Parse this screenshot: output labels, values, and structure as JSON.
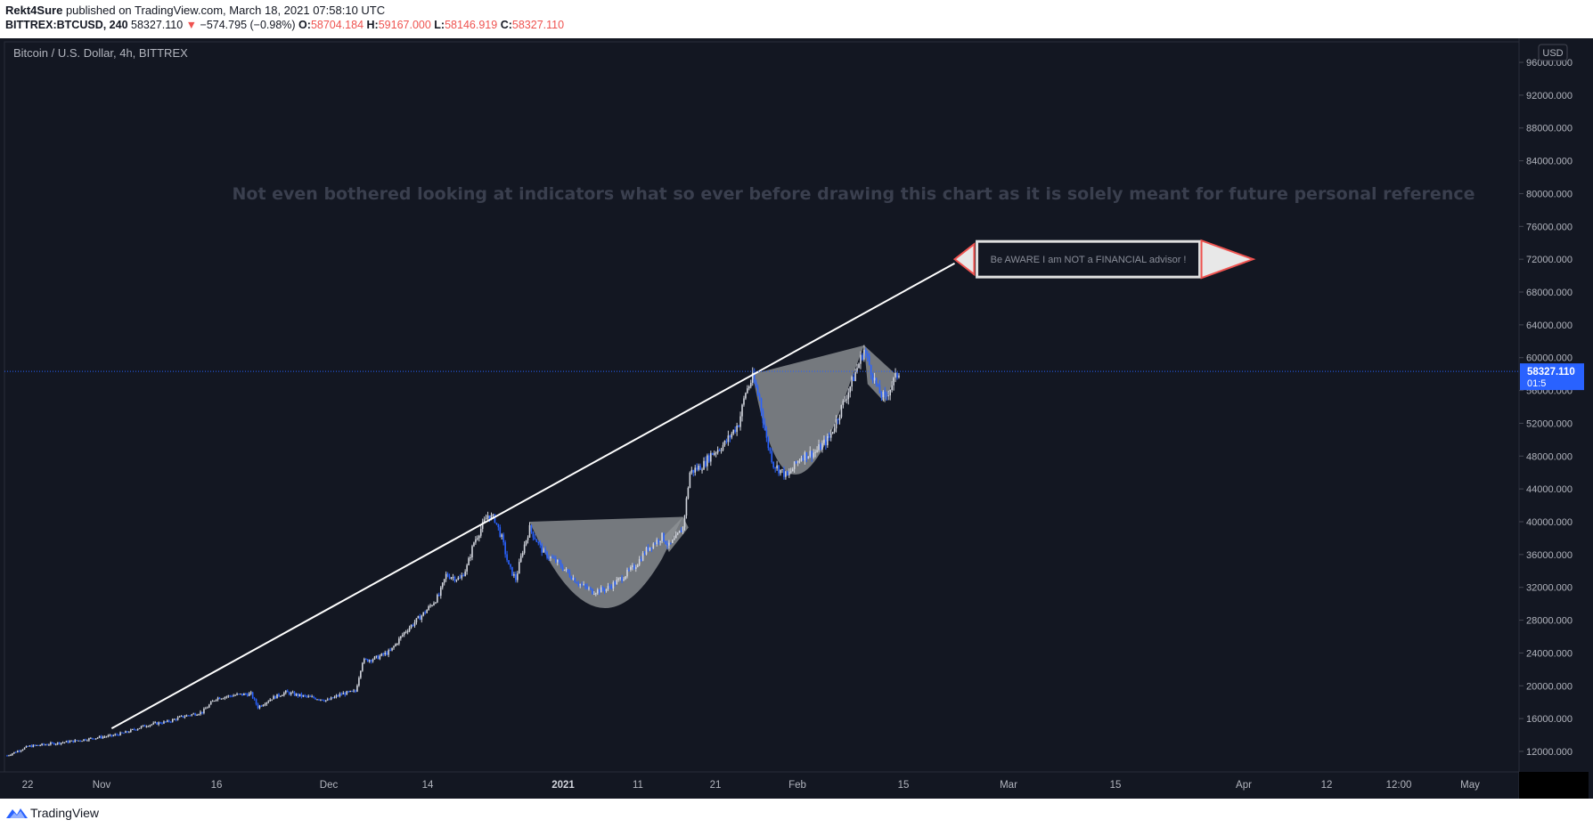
{
  "header": {
    "author": "Rekt4Sure",
    "published_text": "published on TradingView.com, March 18, 2021 07:58:10 UTC",
    "symbol_interval": "BITTREX:BTCUSD, 240",
    "last_price": "58327.110",
    "change": "−574.795 (−0.98%)",
    "open_label": "O:",
    "open_value": "58704.184",
    "high_label": "H:",
    "high_value": "59167.000",
    "low_label": "L:",
    "low_value": "58146.919",
    "close_label": "C:",
    "close_value": "58327.110"
  },
  "chart_data": {
    "type": "candlestick",
    "title": "Bitcoin / U.S. Dollar, 4h, BITTREX",
    "currency": "USD",
    "y_ticks": [
      "12000.000",
      "16000.000",
      "20000.000",
      "24000.000",
      "28000.000",
      "32000.000",
      "36000.000",
      "40000.000",
      "44000.000",
      "48000.000",
      "52000.000",
      "56000.000",
      "60000.000",
      "64000.000",
      "68000.000",
      "72000.000",
      "76000.000",
      "80000.000",
      "84000.000",
      "88000.000",
      "92000.000",
      "96000.000"
    ],
    "ylim": [
      9500,
      98500
    ],
    "x_ticks": [
      "22",
      "Nov",
      "16",
      "Dec",
      "14",
      "2021",
      "11",
      "21",
      "Feb",
      "15",
      "Mar",
      "15",
      "Apr",
      "12",
      "12:00",
      "May"
    ],
    "x_tick_bold": "2021",
    "price_path": [
      [
        0,
        11500
      ],
      [
        3,
        12600
      ],
      [
        8,
        13100
      ],
      [
        10,
        13300
      ],
      [
        13,
        13700
      ],
      [
        15,
        13900
      ],
      [
        17,
        14300
      ],
      [
        20,
        15200
      ],
      [
        22,
        15500
      ],
      [
        23,
        15600
      ],
      [
        25,
        16200
      ],
      [
        28,
        16800
      ],
      [
        30,
        18500
      ],
      [
        33,
        18900
      ],
      [
        35,
        19000
      ],
      [
        36,
        17400
      ],
      [
        38,
        18500
      ],
      [
        40,
        19200
      ],
      [
        42,
        18800
      ],
      [
        45,
        18400
      ],
      [
        46,
        18200
      ],
      [
        48,
        19000
      ],
      [
        50,
        19300
      ],
      [
        51,
        23000
      ],
      [
        53,
        23400
      ],
      [
        55,
        24200
      ],
      [
        57,
        26500
      ],
      [
        60,
        29000
      ],
      [
        62,
        31000
      ],
      [
        63,
        33500
      ],
      [
        65,
        33000
      ],
      [
        66,
        34500
      ],
      [
        67,
        37500
      ],
      [
        69,
        40800
      ],
      [
        70,
        40300
      ],
      [
        71,
        38000
      ],
      [
        72,
        34500
      ],
      [
        73,
        33000
      ],
      [
        74,
        36500
      ],
      [
        75,
        39200
      ],
      [
        77,
        36200
      ],
      [
        79,
        35000
      ],
      [
        82,
        32500
      ],
      [
        84,
        31500
      ],
      [
        86,
        31800
      ],
      [
        88,
        33000
      ],
      [
        90,
        34500
      ],
      [
        92,
        36800
      ],
      [
        94,
        38200
      ],
      [
        95,
        37000
      ],
      [
        96,
        38000
      ],
      [
        97,
        39300
      ],
      [
        98,
        46000
      ],
      [
        99,
        46500
      ],
      [
        100,
        47000
      ],
      [
        101,
        48200
      ],
      [
        103,
        49500
      ],
      [
        105,
        52000
      ],
      [
        106,
        55800
      ],
      [
        107,
        57500
      ],
      [
        108,
        55000
      ],
      [
        109,
        50000
      ],
      [
        110,
        47000
      ],
      [
        112,
        45500
      ],
      [
        113,
        46800
      ],
      [
        114,
        48000
      ],
      [
        116,
        48500
      ],
      [
        118,
        50200
      ],
      [
        121,
        56500
      ],
      [
        123,
        61000
      ],
      [
        124,
        58500
      ],
      [
        125,
        56000
      ],
      [
        126,
        55000
      ],
      [
        127,
        56800
      ],
      [
        128,
        58300
      ]
    ],
    "current_price": 58327.11,
    "current_price_label": "58327.110",
    "countdown": "01:5",
    "trendline": [
      [
        15,
        14800
      ],
      [
        136,
        71500
      ]
    ],
    "annotation_text": "Not even bothered looking at indicators what so ever before drawing this chart as it is solely meant for future personal reference",
    "note_box_text": "Be AWARE I am NOT a FINANCIAL advisor !",
    "patterns": [
      "cup-and-handle-1",
      "cup-and-handle-2"
    ]
  },
  "colors": {
    "background": "#131722",
    "up": "#d1d4dc",
    "down": "#2962ff",
    "trendline": "#ffffff",
    "pattern_fill": "#8f9296",
    "price_label_bg": "#2962ff",
    "red": "#ef5350",
    "axis_text": "#b2b5be",
    "annotation_text": "#3a3f4e"
  },
  "footer": {
    "brand": "TradingView",
    "logo_icon": "tradingview-cloud-icon"
  }
}
